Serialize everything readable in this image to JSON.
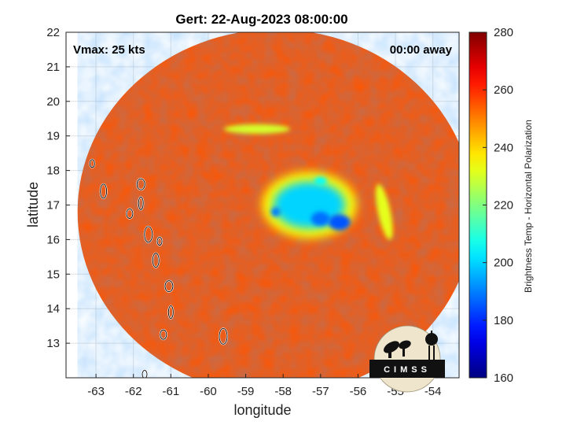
{
  "chart_data": {
    "type": "heatmap",
    "title": "Gert: 22-Aug-2023 08:00:00",
    "xlabel": "longitude",
    "ylabel": "latitude",
    "xlim": [
      -63.8,
      -53.3
    ],
    "ylim": [
      12,
      22
    ],
    "x_ticks": [
      "-63",
      "-62",
      "-61",
      "-60",
      "-59",
      "-58",
      "-57",
      "-56",
      "-55",
      "-54"
    ],
    "y_ticks": [
      "13",
      "14",
      "15",
      "16",
      "17",
      "18",
      "19",
      "20",
      "21",
      "22"
    ],
    "grid": true,
    "swath_center": [
      -58.2,
      16.8
    ],
    "background_brightness_temp": 255,
    "colorbar": {
      "label": "Brightness Temp - Horizontal Polarization",
      "min": 160,
      "max": 280,
      "ticks": [
        "280",
        "260",
        "240",
        "220",
        "200",
        "180",
        "160"
      ],
      "colormap": "jet"
    },
    "annotations": {
      "vmax": "Vmax: 25 kts",
      "time_away": "00:00 away"
    },
    "features": [
      {
        "name": "core",
        "lon": -57.3,
        "lat": 17.0,
        "temp": 200
      },
      {
        "name": "core-hot-1",
        "lon": -56.5,
        "lat": 16.5,
        "temp": 185
      },
      {
        "name": "core-hot-2",
        "lon": -57.0,
        "lat": 16.6,
        "temp": 188
      },
      {
        "name": "core-hot-3",
        "lon": -58.2,
        "lat": 16.8,
        "temp": 190
      },
      {
        "name": "core-north",
        "lon": -57.0,
        "lat": 17.7,
        "temp": 205
      },
      {
        "name": "band-north",
        "lon": -58.7,
        "lat": 19.2,
        "temp": 230
      },
      {
        "name": "band-east",
        "lon": -55.3,
        "lat": 16.8,
        "temp": 232
      }
    ],
    "land_outlines": [
      {
        "lon": -63.1,
        "lat": 18.2
      },
      {
        "lon": -62.8,
        "lat": 17.4
      },
      {
        "lon": -61.8,
        "lat": 17.6
      },
      {
        "lon": -61.8,
        "lat": 17.05
      },
      {
        "lon": -62.1,
        "lat": 16.75
      },
      {
        "lon": -61.6,
        "lat": 16.15
      },
      {
        "lon": -61.3,
        "lat": 15.95
      },
      {
        "lon": -61.4,
        "lat": 15.4
      },
      {
        "lon": -61.05,
        "lat": 14.65
      },
      {
        "lon": -61.0,
        "lat": 13.9
      },
      {
        "lon": -61.2,
        "lat": 13.25
      },
      {
        "lon": -59.6,
        "lat": 13.2
      },
      {
        "lon": -61.7,
        "lat": 12.1
      }
    ]
  },
  "logo": {
    "text": "CIMSS"
  }
}
